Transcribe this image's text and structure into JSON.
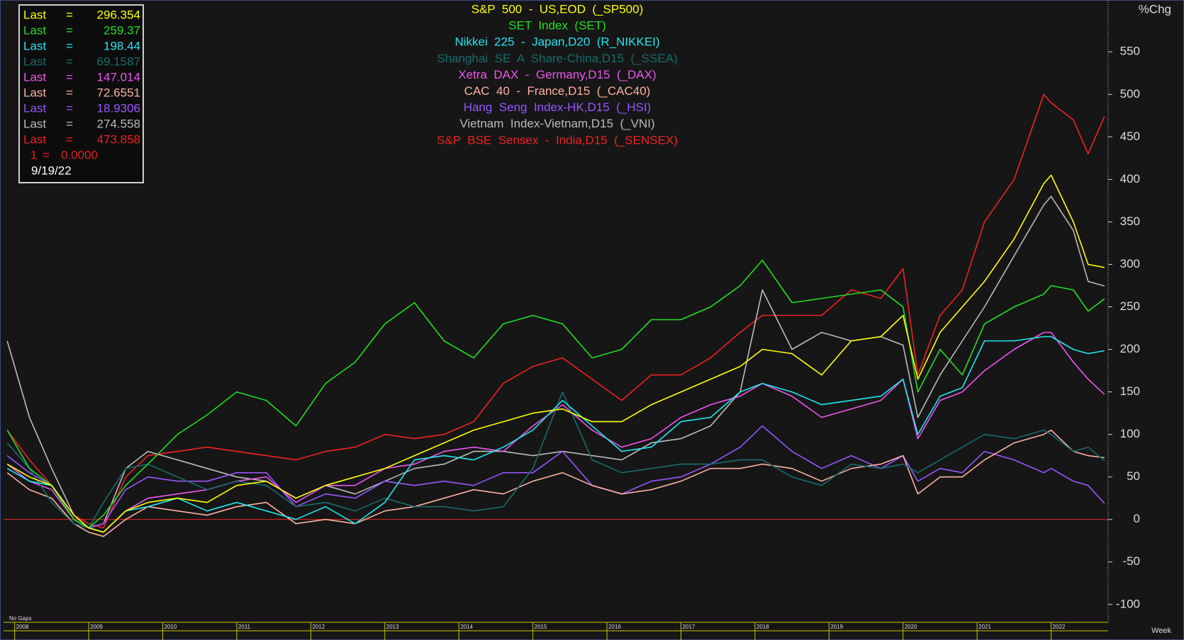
{
  "chart_data": {
    "type": "line",
    "y_axis_label": "%Chg",
    "x_axis_label": "Week",
    "gap_note": "No Gaps",
    "legend_prefix": "Last",
    "legend_separator": "=",
    "legend_date": "9/19/22",
    "reference_line": {
      "name": "1",
      "value": 0,
      "label": "0.0000",
      "color": "#e02020"
    },
    "xlim": [
      2007.85,
      2022.77
    ],
    "xticks": [
      2008,
      2009,
      2010,
      2011,
      2012,
      2013,
      2014,
      2015,
      2016,
      2017,
      2018,
      2019,
      2020,
      2021,
      2022
    ],
    "ylim": [
      -121,
      611
    ],
    "yticks": [
      -100,
      -50,
      0,
      50,
      100,
      150,
      200,
      250,
      300,
      350,
      400,
      450,
      500,
      550
    ],
    "grid": false,
    "x": [
      2007.9,
      2008.2,
      2008.5,
      2008.8,
      2009.0,
      2009.2,
      2009.5,
      2009.8,
      2010.2,
      2010.6,
      2011.0,
      2011.4,
      2011.8,
      2012.2,
      2012.6,
      2013.0,
      2013.4,
      2013.8,
      2014.2,
      2014.6,
      2015.0,
      2015.4,
      2015.8,
      2016.2,
      2016.6,
      2017.0,
      2017.4,
      2017.8,
      2018.1,
      2018.5,
      2018.9,
      2019.3,
      2019.7,
      2020.0,
      2020.2,
      2020.5,
      2020.8,
      2021.1,
      2021.5,
      2021.9,
      2022.0,
      2022.3,
      2022.5,
      2022.72
    ],
    "series": [
      {
        "name": "S&P  500  -  US,EOD  (_SP500)",
        "color": "#ffff00",
        "last": 296.354,
        "values": [
          65,
          50,
          40,
          5,
          -10,
          -15,
          10,
          20,
          25,
          20,
          40,
          45,
          25,
          40,
          50,
          60,
          75,
          90,
          105,
          115,
          125,
          130,
          115,
          115,
          135,
          150,
          165,
          180,
          200,
          195,
          170,
          210,
          215,
          240,
          165,
          220,
          250,
          280,
          330,
          395,
          405,
          350,
          300,
          296.354
        ]
      },
      {
        "name": "SET  Index  (SET)",
        "color": "#22dd22",
        "last": 259.37,
        "values": [
          105,
          60,
          40,
          0,
          -10,
          5,
          40,
          65,
          100,
          123,
          150,
          140,
          110,
          160,
          185,
          230,
          255,
          210,
          190,
          230,
          240,
          230,
          190,
          200,
          235,
          235,
          250,
          275,
          305,
          255,
          260,
          265,
          270,
          250,
          150,
          200,
          170,
          230,
          250,
          265,
          275,
          270,
          245,
          259.37
        ]
      },
      {
        "name": "Nikkei  225  -  Japan,D20  (R_NIKKEI)",
        "color": "#22e5ee",
        "last": 198.44,
        "values": [
          60,
          45,
          40,
          0,
          -10,
          -15,
          10,
          15,
          25,
          10,
          20,
          10,
          0,
          15,
          -5,
          20,
          70,
          75,
          70,
          85,
          105,
          140,
          110,
          80,
          85,
          115,
          120,
          150,
          160,
          150,
          135,
          140,
          145,
          165,
          100,
          145,
          155,
          210,
          210,
          215,
          215,
          200,
          195,
          198.44
        ]
      },
      {
        "name": "Shanghai  SE  A  Share-China,D15  (_SSEA)",
        "color": "#176c6c",
        "last": 69.1587,
        "values": [
          90,
          60,
          20,
          -5,
          -10,
          20,
          60,
          65,
          50,
          35,
          45,
          40,
          15,
          20,
          10,
          25,
          15,
          15,
          10,
          15,
          60,
          150,
          70,
          55,
          60,
          65,
          65,
          70,
          70,
          50,
          40,
          65,
          60,
          65,
          55,
          70,
          85,
          100,
          95,
          105,
          100,
          80,
          85,
          69.1587
        ]
      },
      {
        "name": "Xetra  DAX  -  Germany,D15  (_DAX)",
        "color": "#ee55ee",
        "last": 147.014,
        "values": [
          65,
          45,
          35,
          0,
          -10,
          -15,
          10,
          25,
          30,
          35,
          45,
          50,
          20,
          40,
          40,
          60,
          65,
          80,
          85,
          80,
          110,
          135,
          105,
          85,
          95,
          120,
          135,
          145,
          160,
          145,
          120,
          130,
          140,
          165,
          95,
          140,
          150,
          175,
          200,
          220,
          220,
          185,
          165,
          147.014
        ]
      },
      {
        "name": "CAC  40  -  France,D15  (_CAC40)",
        "color": "#ffb0a0",
        "last": 72.6551,
        "values": [
          55,
          35,
          25,
          -5,
          -15,
          -20,
          0,
          15,
          10,
          5,
          15,
          20,
          -5,
          0,
          -5,
          10,
          15,
          25,
          35,
          30,
          45,
          55,
          40,
          30,
          35,
          45,
          60,
          60,
          65,
          60,
          45,
          60,
          65,
          75,
          30,
          50,
          50,
          70,
          90,
          100,
          105,
          80,
          75,
          72.6551
        ]
      },
      {
        "name": "Hang  Seng  Index-HK,D15  (_HSI)",
        "color": "#9955ff",
        "last": 18.9306,
        "values": [
          75,
          55,
          40,
          0,
          -10,
          -5,
          35,
          50,
          45,
          45,
          55,
          55,
          15,
          30,
          25,
          45,
          40,
          45,
          40,
          55,
          55,
          80,
          40,
          30,
          45,
          50,
          65,
          85,
          110,
          80,
          60,
          75,
          60,
          75,
          45,
          60,
          55,
          80,
          70,
          55,
          60,
          45,
          40,
          18.9306
        ]
      },
      {
        "name": "Vietnam  Index-Vietnam,D15  (_VNI)",
        "color": "#bbbbbb",
        "last": 274.558,
        "values": [
          210,
          120,
          60,
          5,
          -10,
          -5,
          60,
          80,
          70,
          60,
          50,
          45,
          25,
          40,
          30,
          45,
          60,
          65,
          80,
          80,
          75,
          80,
          75,
          70,
          90,
          95,
          110,
          150,
          270,
          200,
          220,
          210,
          215,
          205,
          120,
          170,
          210,
          250,
          310,
          370,
          380,
          340,
          280,
          274.558
        ]
      },
      {
        "name": "S&P  BSE  Sensex  -  India,D15  (_SENSEX)",
        "color": "#ee2222",
        "last": 473.858,
        "values": [
          105,
          70,
          40,
          5,
          -5,
          -10,
          50,
          75,
          80,
          85,
          80,
          75,
          70,
          80,
          85,
          100,
          95,
          100,
          115,
          160,
          180,
          190,
          165,
          140,
          170,
          170,
          190,
          220,
          240,
          240,
          240,
          270,
          260,
          295,
          170,
          240,
          270,
          350,
          400,
          500,
          490,
          470,
          430,
          473.858
        ]
      }
    ]
  }
}
